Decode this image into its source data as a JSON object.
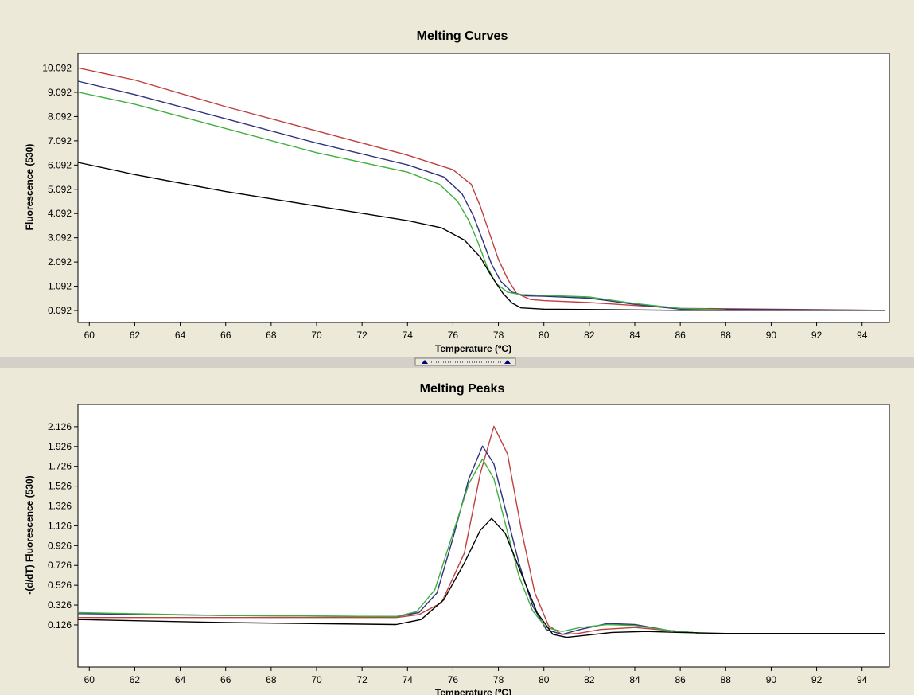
{
  "chart_data": [
    {
      "type": "line",
      "title": "Melting Curves",
      "xlabel": "Temperature (ºC)",
      "ylabel": "Fluorescence (530)",
      "xlim": [
        59.5,
        95.2
      ],
      "ylim": [
        -0.4,
        10.7
      ],
      "x_ticks": [
        "60",
        "62",
        "64",
        "66",
        "68",
        "70",
        "72",
        "74",
        "76",
        "78",
        "80",
        "82",
        "84",
        "86",
        "88",
        "90",
        "92",
        "94"
      ],
      "y_ticks": [
        "0.092",
        "1.092",
        "2.092",
        "3.092",
        "4.092",
        "5.092",
        "6.092",
        "7.092",
        "8.092",
        "9.092",
        "10.092"
      ],
      "series": [
        {
          "color": "#c04040",
          "x": [
            59.5,
            62,
            66,
            70,
            74,
            76,
            76.8,
            77.2,
            77.6,
            78,
            78.4,
            78.8,
            79.4,
            80,
            82,
            86,
            95
          ],
          "y": [
            10.1,
            9.6,
            8.5,
            7.5,
            6.5,
            5.9,
            5.3,
            4.4,
            3.3,
            2.2,
            1.4,
            0.8,
            0.55,
            0.5,
            0.42,
            0.18,
            0.1
          ]
        },
        {
          "color": "#303080",
          "x": [
            59.5,
            62,
            66,
            70,
            74,
            75.6,
            76.4,
            76.9,
            77.3,
            77.7,
            78.1,
            78.6,
            79.2,
            80,
            82,
            84,
            86,
            95
          ],
          "y": [
            9.55,
            9.0,
            8.0,
            7.0,
            6.1,
            5.6,
            4.9,
            4.0,
            3.0,
            2.0,
            1.3,
            0.85,
            0.7,
            0.68,
            0.6,
            0.35,
            0.15,
            0.1
          ]
        },
        {
          "color": "#40b040",
          "x": [
            59.5,
            62,
            66,
            70,
            74,
            75.4,
            76.2,
            76.7,
            77.1,
            77.5,
            77.9,
            78.4,
            79,
            80,
            82,
            84,
            86,
            88
          ],
          "y": [
            9.1,
            8.6,
            7.6,
            6.6,
            5.8,
            5.3,
            4.6,
            3.8,
            2.9,
            1.9,
            1.2,
            0.85,
            0.75,
            0.72,
            0.65,
            0.38,
            0.18,
            0.12
          ]
        },
        {
          "color": "#000000",
          "x": [
            59.5,
            62,
            66,
            70,
            74,
            75.5,
            76.5,
            77.2,
            77.7,
            78.2,
            78.6,
            79,
            80,
            86,
            95
          ],
          "y": [
            6.2,
            5.7,
            5.0,
            4.4,
            3.8,
            3.5,
            3.0,
            2.3,
            1.5,
            0.8,
            0.4,
            0.2,
            0.15,
            0.1,
            0.1
          ]
        }
      ]
    },
    {
      "type": "line",
      "title": "Melting Peaks",
      "xlabel": "Temperature (ºC)",
      "ylabel": "-(d/dT) Fluorescence (530)",
      "xlim": [
        59.5,
        95.2
      ],
      "ylim": [
        -0.3,
        2.35
      ],
      "x_ticks": [
        "60",
        "62",
        "64",
        "66",
        "68",
        "70",
        "72",
        "74",
        "76",
        "78",
        "80",
        "82",
        "84",
        "86",
        "88",
        "90",
        "92",
        "94"
      ],
      "y_ticks": [
        "0.126",
        "0.326",
        "0.526",
        "0.726",
        "0.926",
        "1.126",
        "1.326",
        "1.526",
        "1.726",
        "1.926",
        "2.126"
      ],
      "series": [
        {
          "color": "#c04040",
          "x": [
            59.5,
            66,
            73.5,
            74.5,
            75.5,
            76.5,
            77.2,
            77.8,
            78.4,
            79,
            79.6,
            80.2,
            80.8,
            81.5,
            82.5,
            84,
            85.5,
            87,
            93.6
          ],
          "y": [
            0.2,
            0.2,
            0.2,
            0.23,
            0.35,
            0.85,
            1.65,
            2.13,
            1.85,
            1.1,
            0.45,
            0.12,
            0.03,
            0.04,
            0.08,
            0.1,
            0.07,
            0.04,
            0.04
          ]
        },
        {
          "color": "#303080",
          "x": [
            59.5,
            66,
            73.5,
            74.5,
            75.3,
            76,
            76.7,
            77.3,
            77.8,
            78.3,
            78.9,
            79.5,
            80.1,
            80.8,
            81.6,
            82.8,
            84,
            85.5,
            87,
            93.6
          ],
          "y": [
            0.24,
            0.22,
            0.21,
            0.25,
            0.45,
            1.0,
            1.6,
            1.93,
            1.75,
            1.3,
            0.75,
            0.32,
            0.08,
            0.03,
            0.08,
            0.14,
            0.13,
            0.07,
            0.04,
            0.04
          ]
        },
        {
          "color": "#40b040",
          "x": [
            59.5,
            66,
            73.5,
            74.4,
            75.2,
            76,
            76.7,
            77.3,
            77.8,
            78.3,
            78.9,
            79.5,
            80.1,
            80.8,
            81.6,
            82.8,
            84,
            85.5,
            87,
            93.6
          ],
          "y": [
            0.25,
            0.22,
            0.21,
            0.26,
            0.48,
            1.05,
            1.55,
            1.8,
            1.6,
            1.15,
            0.62,
            0.27,
            0.1,
            0.06,
            0.1,
            0.13,
            0.12,
            0.07,
            0.04,
            0.04
          ]
        },
        {
          "color": "#000000",
          "x": [
            59.5,
            66,
            73.5,
            74.6,
            75.6,
            76.5,
            77.2,
            77.7,
            78.3,
            79,
            79.7,
            80.4,
            81,
            81.8,
            83,
            84.5,
            86,
            88,
            95
          ],
          "y": [
            0.18,
            0.15,
            0.13,
            0.18,
            0.38,
            0.75,
            1.08,
            1.2,
            1.05,
            0.65,
            0.25,
            0.03,
            0.0,
            0.02,
            0.05,
            0.06,
            0.05,
            0.04,
            0.04
          ]
        }
      ]
    }
  ]
}
